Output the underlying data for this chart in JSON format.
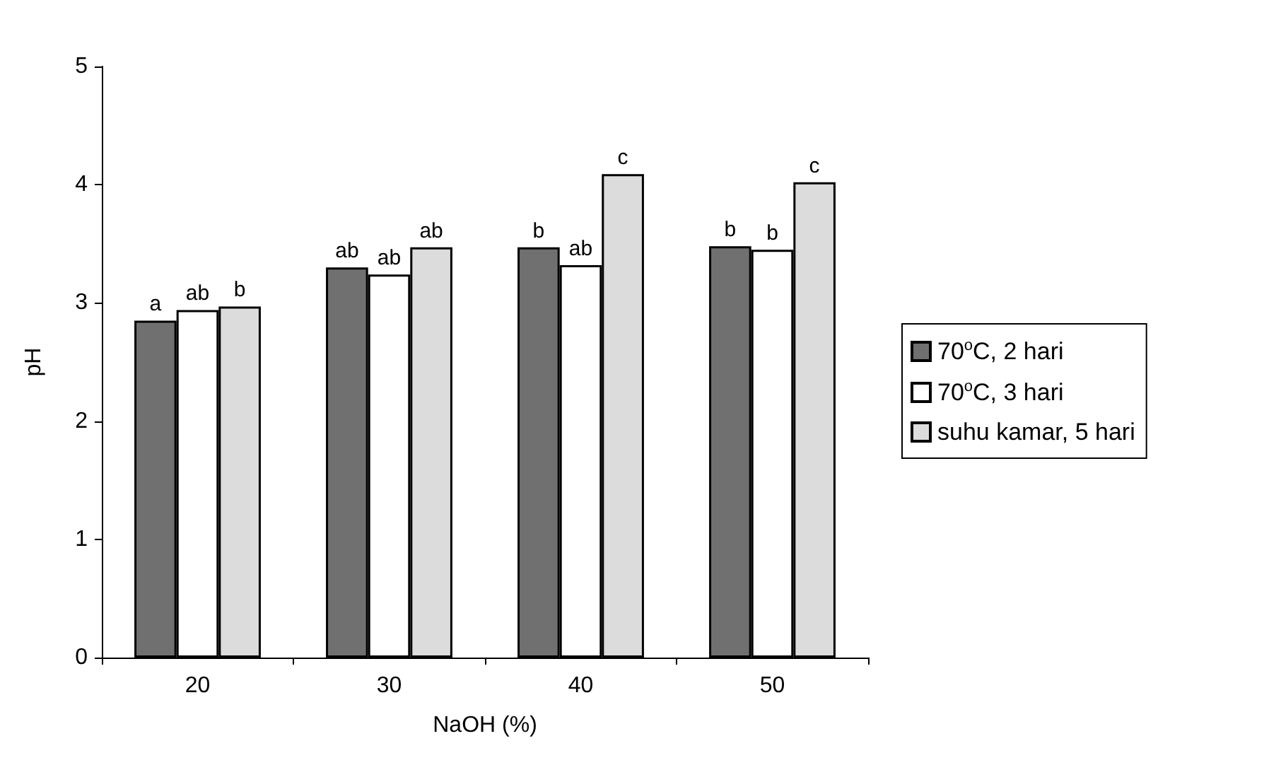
{
  "chart_data": {
    "type": "bar",
    "xlabel": "NaOH (%)",
    "ylabel": "pH",
    "categories": [
      "20",
      "30",
      "40",
      "50"
    ],
    "ylim": [
      0,
      5
    ],
    "yticks": [
      0,
      1,
      2,
      3,
      4,
      5
    ],
    "grid": false,
    "legend": "right",
    "series": [
      {
        "name": "70$^{o}$C, 2 hari",
        "color": "#707070",
        "values": [
          2.85,
          3.3,
          3.47,
          3.48
        ],
        "value_labels": [
          "a",
          "ab",
          "b",
          "b"
        ]
      },
      {
        "name": "70$^{o}$C, 3 hari",
        "color": "#ffffff",
        "values": [
          2.94,
          3.24,
          3.32,
          3.45
        ],
        "value_labels": [
          "ab",
          "ab",
          "ab",
          "b"
        ]
      },
      {
        "name": "suhu kamar, 5 hari",
        "color": "#dcdcdc",
        "values": [
          2.97,
          3.47,
          4.09,
          4.02
        ],
        "value_labels": [
          "b",
          "ab",
          "c",
          "c"
        ]
      }
    ]
  }
}
